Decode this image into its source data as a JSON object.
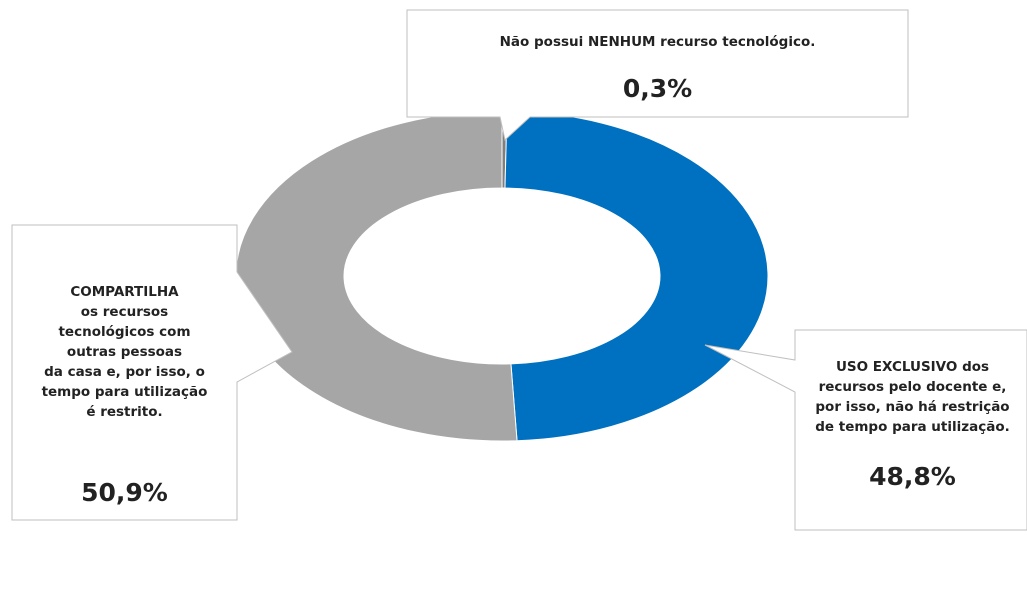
{
  "chart_data": {
    "type": "donut",
    "categories": [
      "Não possui NENHUM recurso tecnológico.",
      "USO EXCLUSIVO dos\nrecursos pelo docente e,\npor isso, não há restrição\nde tempo para utilização.",
      "COMPARTILHA\nos recursos\ntecnológicos com\noutras pessoas\nda casa e, por isso, o\ntempo para utilização\né restrito."
    ],
    "values": [
      0.3,
      48.8,
      50.9
    ],
    "value_labels": [
      "0,3%",
      "48,8%",
      "50,9%"
    ],
    "colors": [
      "#7f7f7f",
      "#0070c0",
      "#a6a6a6"
    ]
  }
}
